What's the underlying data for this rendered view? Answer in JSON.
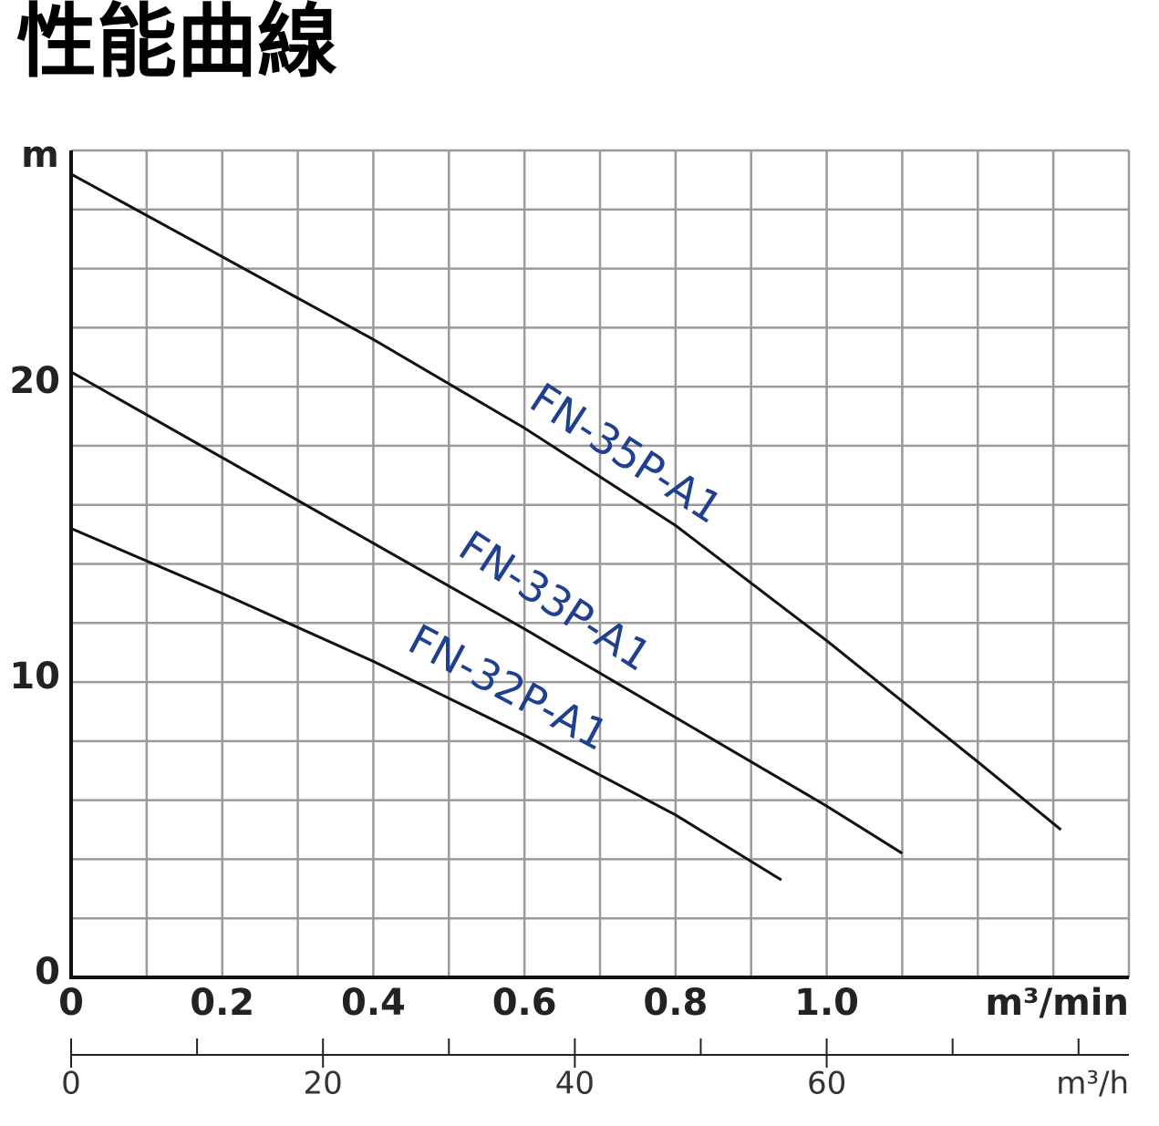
{
  "title": "性能曲線",
  "chart_data": {
    "type": "line",
    "y_label": "m",
    "x_label": "m³/min",
    "x2_label": "m³/h",
    "xlim": [
      0,
      1.4
    ],
    "ylim": [
      0,
      28
    ],
    "x2lim": [
      0,
      84
    ],
    "xticks": [
      0,
      0.2,
      0.4,
      0.6,
      0.8,
      {
        "value": 1,
        "label": "1.0"
      }
    ],
    "x_minor_ticks": [
      0.1,
      0.3,
      0.5,
      0.7,
      0.9,
      1.1,
      1.2,
      1.3,
      1.4
    ],
    "yticks": [
      0,
      10,
      20
    ],
    "y_minor_ticks": [
      2,
      4,
      6,
      8,
      12,
      14,
      16,
      18,
      22,
      24,
      26,
      28
    ],
    "x2ticks": [
      0,
      20,
      40,
      60
    ],
    "x2_minor_ticks": [
      10,
      30,
      50,
      70,
      80
    ],
    "grid": true,
    "series": [
      {
        "name": "FN-35P-A1",
        "color": "#111111",
        "x": [
          0,
          0.2,
          0.4,
          0.6,
          0.8,
          1.0,
          1.2,
          1.31
        ],
        "values": [
          27.2,
          24.4,
          21.6,
          18.6,
          15.3,
          11.4,
          7.3,
          5.0
        ]
      },
      {
        "name": "FN-33P-A1",
        "color": "#111111",
        "x": [
          0,
          0.2,
          0.4,
          0.6,
          0.8,
          1.0,
          1.1
        ],
        "values": [
          20.5,
          17.6,
          14.7,
          11.8,
          8.8,
          5.8,
          4.2
        ]
      },
      {
        "name": "FN-32P-A1",
        "color": "#111111",
        "x": [
          0,
          0.2,
          0.4,
          0.6,
          0.8,
          0.94
        ],
        "values": [
          15.2,
          13.0,
          10.7,
          8.2,
          5.5,
          3.3
        ]
      }
    ]
  }
}
